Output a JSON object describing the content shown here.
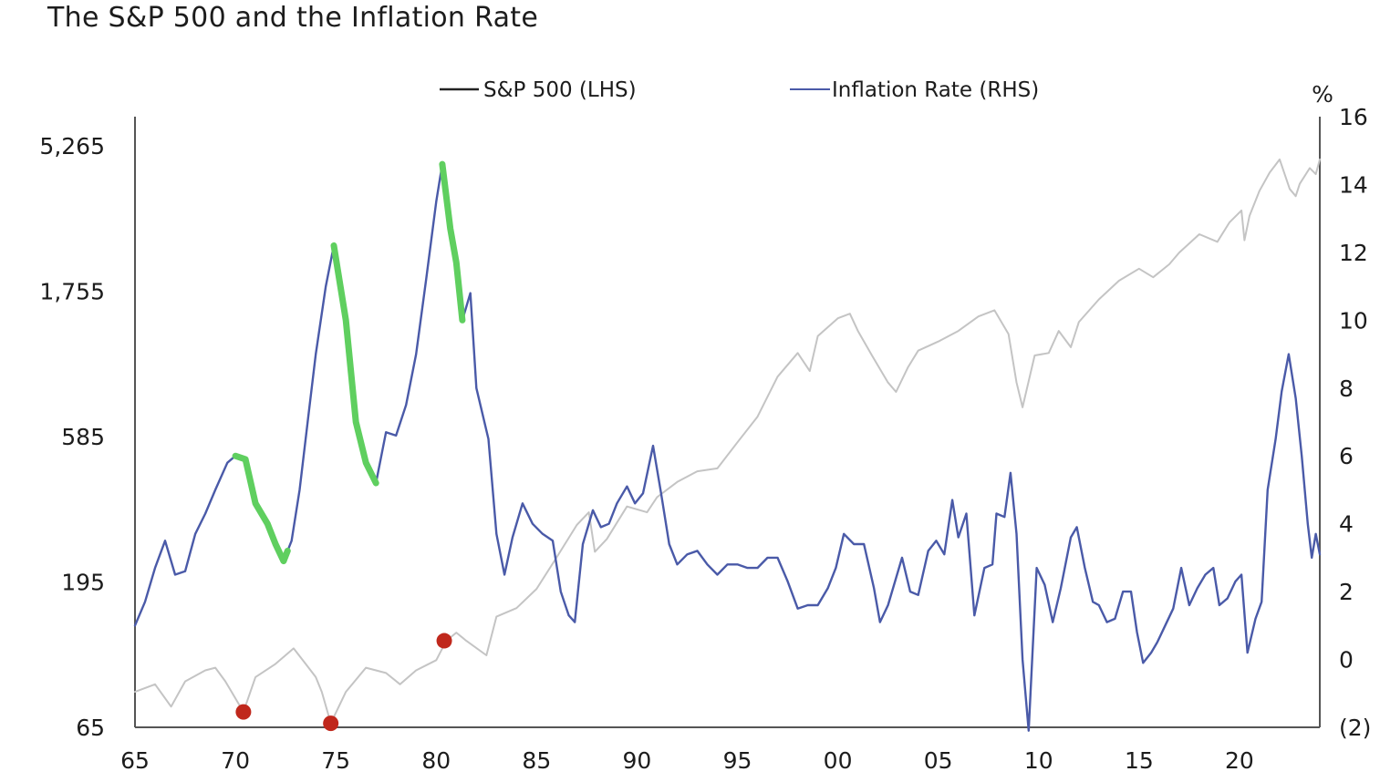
{
  "chart_data": {
    "type": "line",
    "title": "The S&P 500 and the Inflation Rate",
    "x_ticks": [
      "65",
      "70",
      "75",
      "80",
      "85",
      "90",
      "95",
      "00",
      "05",
      "10",
      "15",
      "20"
    ],
    "x_range": [
      1965,
      2024
    ],
    "left_axis": {
      "scale": "log",
      "ticks": [
        {
          "value": 65,
          "label": "65"
        },
        {
          "value": 195,
          "label": "195"
        },
        {
          "value": 585,
          "label": "585"
        },
        {
          "value": 1755,
          "label": "1,755"
        },
        {
          "value": 5265,
          "label": "5,265"
        }
      ],
      "range": [
        65,
        5265
      ]
    },
    "right_axis": {
      "unit": "%",
      "ticks": [
        {
          "value": -2,
          "label": "(2)"
        },
        {
          "value": 0,
          "label": "0"
        },
        {
          "value": 2,
          "label": "2"
        },
        {
          "value": 4,
          "label": "4"
        },
        {
          "value": 6,
          "label": "6"
        },
        {
          "value": 8,
          "label": "8"
        },
        {
          "value": 10,
          "label": "10"
        },
        {
          "value": 12,
          "label": "12"
        },
        {
          "value": 14,
          "label": "14"
        },
        {
          "value": 16,
          "label": "16"
        }
      ],
      "range": [
        -2,
        16
      ]
    },
    "legend": {
      "placement": "top-center",
      "items": [
        {
          "label": "S&P 500 (LHS)",
          "color": "#222222"
        },
        {
          "label": "Inflation Rate (RHS)",
          "color": "#4a5aa8"
        }
      ]
    },
    "series": [
      {
        "name": "S&P 500 (LHS)",
        "axis": "left",
        "color": "#c4c4c4",
        "points": [
          [
            1965.0,
            85
          ],
          [
            1966.0,
            90
          ],
          [
            1966.8,
            76
          ],
          [
            1967.5,
            92
          ],
          [
            1968.5,
            100
          ],
          [
            1969.0,
            102
          ],
          [
            1969.5,
            92
          ],
          [
            1970.4,
            73
          ],
          [
            1971.0,
            95
          ],
          [
            1972.0,
            105
          ],
          [
            1972.9,
            118
          ],
          [
            1973.5,
            105
          ],
          [
            1974.0,
            95
          ],
          [
            1974.3,
            85
          ],
          [
            1974.75,
            67
          ],
          [
            1975.5,
            85
          ],
          [
            1976.5,
            102
          ],
          [
            1977.5,
            98
          ],
          [
            1978.2,
            90
          ],
          [
            1979.0,
            100
          ],
          [
            1980.0,
            108
          ],
          [
            1980.5,
            125
          ],
          [
            1981.0,
            133
          ],
          [
            1981.5,
            125
          ],
          [
            1982.5,
            112
          ],
          [
            1983.0,
            150
          ],
          [
            1984.0,
            160
          ],
          [
            1985.0,
            185
          ],
          [
            1986.0,
            235
          ],
          [
            1987.0,
            300
          ],
          [
            1987.6,
            330
          ],
          [
            1987.9,
            245
          ],
          [
            1988.5,
            270
          ],
          [
            1989.5,
            345
          ],
          [
            1990.5,
            330
          ],
          [
            1991.0,
            370
          ],
          [
            1992.0,
            415
          ],
          [
            1993.0,
            450
          ],
          [
            1994.0,
            460
          ],
          [
            1995.0,
            560
          ],
          [
            1996.0,
            680
          ],
          [
            1997.0,
            920
          ],
          [
            1998.0,
            1100
          ],
          [
            1998.6,
            960
          ],
          [
            1999.0,
            1250
          ],
          [
            2000.0,
            1430
          ],
          [
            2000.6,
            1480
          ],
          [
            2001.0,
            1300
          ],
          [
            2001.7,
            1080
          ],
          [
            2002.5,
            880
          ],
          [
            2002.9,
            820
          ],
          [
            2003.5,
            990
          ],
          [
            2004.0,
            1120
          ],
          [
            2005.0,
            1200
          ],
          [
            2006.0,
            1300
          ],
          [
            2007.0,
            1450
          ],
          [
            2007.8,
            1520
          ],
          [
            2008.5,
            1270
          ],
          [
            2008.9,
            880
          ],
          [
            2009.2,
            730
          ],
          [
            2009.8,
            1080
          ],
          [
            2010.5,
            1100
          ],
          [
            2011.0,
            1300
          ],
          [
            2011.6,
            1150
          ],
          [
            2012.0,
            1390
          ],
          [
            2013.0,
            1650
          ],
          [
            2014.0,
            1900
          ],
          [
            2015.0,
            2080
          ],
          [
            2015.7,
            1950
          ],
          [
            2016.5,
            2150
          ],
          [
            2017.0,
            2350
          ],
          [
            2018.0,
            2700
          ],
          [
            2018.9,
            2550
          ],
          [
            2019.5,
            2950
          ],
          [
            2020.1,
            3230
          ],
          [
            2020.25,
            2580
          ],
          [
            2020.5,
            3100
          ],
          [
            2021.0,
            3750
          ],
          [
            2021.5,
            4300
          ],
          [
            2022.0,
            4750
          ],
          [
            2022.5,
            3800
          ],
          [
            2022.8,
            3600
          ],
          [
            2023.0,
            3950
          ],
          [
            2023.5,
            4450
          ],
          [
            2023.8,
            4250
          ],
          [
            2024.0,
            4750
          ]
        ]
      },
      {
        "name": "Inflation Rate (RHS)",
        "axis": "right",
        "color": "#4a5aa8",
        "points": [
          [
            1965.0,
            1.0
          ],
          [
            1965.5,
            1.7
          ],
          [
            1966.0,
            2.7
          ],
          [
            1966.5,
            3.5
          ],
          [
            1967.0,
            2.5
          ],
          [
            1967.5,
            2.6
          ],
          [
            1968.0,
            3.7
          ],
          [
            1968.5,
            4.3
          ],
          [
            1969.0,
            5.0
          ],
          [
            1969.6,
            5.8
          ],
          [
            1970.0,
            6.0
          ],
          [
            1970.5,
            5.9
          ],
          [
            1971.0,
            4.6
          ],
          [
            1971.6,
            4.0
          ],
          [
            1972.0,
            3.4
          ],
          [
            1972.4,
            2.9
          ],
          [
            1972.8,
            3.5
          ],
          [
            1973.2,
            5.0
          ],
          [
            1973.6,
            7.0
          ],
          [
            1974.0,
            9.0
          ],
          [
            1974.5,
            11.0
          ],
          [
            1974.9,
            12.2
          ],
          [
            1975.5,
            10.0
          ],
          [
            1976.0,
            7.0
          ],
          [
            1976.5,
            5.8
          ],
          [
            1977.0,
            5.2
          ],
          [
            1977.5,
            6.7
          ],
          [
            1978.0,
            6.6
          ],
          [
            1978.5,
            7.5
          ],
          [
            1979.0,
            9.0
          ],
          [
            1979.5,
            11.2
          ],
          [
            1980.0,
            13.5
          ],
          [
            1980.3,
            14.6
          ],
          [
            1980.7,
            12.7
          ],
          [
            1981.0,
            11.7
          ],
          [
            1981.3,
            10.0
          ],
          [
            1981.7,
            10.8
          ],
          [
            1982.0,
            8.0
          ],
          [
            1982.6,
            6.5
          ],
          [
            1983.0,
            3.7
          ],
          [
            1983.4,
            2.5
          ],
          [
            1983.8,
            3.6
          ],
          [
            1984.3,
            4.6
          ],
          [
            1984.8,
            4.0
          ],
          [
            1985.3,
            3.7
          ],
          [
            1985.8,
            3.5
          ],
          [
            1986.2,
            2.0
          ],
          [
            1986.6,
            1.3
          ],
          [
            1986.9,
            1.1
          ],
          [
            1987.3,
            3.4
          ],
          [
            1987.8,
            4.4
          ],
          [
            1988.2,
            3.9
          ],
          [
            1988.6,
            4.0
          ],
          [
            1989.0,
            4.6
          ],
          [
            1989.5,
            5.1
          ],
          [
            1989.9,
            4.6
          ],
          [
            1990.3,
            4.9
          ],
          [
            1990.8,
            6.3
          ],
          [
            1991.2,
            4.9
          ],
          [
            1991.6,
            3.4
          ],
          [
            1992.0,
            2.8
          ],
          [
            1992.5,
            3.1
          ],
          [
            1993.0,
            3.2
          ],
          [
            1993.5,
            2.8
          ],
          [
            1994.0,
            2.5
          ],
          [
            1994.5,
            2.8
          ],
          [
            1995.0,
            2.8
          ],
          [
            1995.5,
            2.7
          ],
          [
            1996.0,
            2.7
          ],
          [
            1996.5,
            3.0
          ],
          [
            1997.0,
            3.0
          ],
          [
            1997.5,
            2.3
          ],
          [
            1998.0,
            1.5
          ],
          [
            1998.5,
            1.6
          ],
          [
            1999.0,
            1.6
          ],
          [
            1999.5,
            2.1
          ],
          [
            1999.9,
            2.7
          ],
          [
            2000.3,
            3.7
          ],
          [
            2000.8,
            3.4
          ],
          [
            2001.3,
            3.4
          ],
          [
            2001.8,
            2.1
          ],
          [
            2002.1,
            1.1
          ],
          [
            2002.5,
            1.6
          ],
          [
            2002.9,
            2.4
          ],
          [
            2003.2,
            3.0
          ],
          [
            2003.6,
            2.0
          ],
          [
            2004.0,
            1.9
          ],
          [
            2004.5,
            3.2
          ],
          [
            2004.9,
            3.5
          ],
          [
            2005.3,
            3.1
          ],
          [
            2005.7,
            4.7
          ],
          [
            2006.0,
            3.6
          ],
          [
            2006.4,
            4.3
          ],
          [
            2006.8,
            1.3
          ],
          [
            2007.3,
            2.7
          ],
          [
            2007.7,
            2.8
          ],
          [
            2007.9,
            4.3
          ],
          [
            2008.3,
            4.2
          ],
          [
            2008.6,
            5.5
          ],
          [
            2008.9,
            3.7
          ],
          [
            2009.2,
            0.0
          ],
          [
            2009.5,
            -2.1
          ],
          [
            2009.9,
            2.7
          ],
          [
            2010.3,
            2.2
          ],
          [
            2010.7,
            1.1
          ],
          [
            2011.1,
            2.1
          ],
          [
            2011.6,
            3.6
          ],
          [
            2011.9,
            3.9
          ],
          [
            2012.3,
            2.7
          ],
          [
            2012.7,
            1.7
          ],
          [
            2013.0,
            1.6
          ],
          [
            2013.4,
            1.1
          ],
          [
            2013.8,
            1.2
          ],
          [
            2014.2,
            2.0
          ],
          [
            2014.6,
            2.0
          ],
          [
            2014.9,
            0.8
          ],
          [
            2015.2,
            -0.1
          ],
          [
            2015.6,
            0.2
          ],
          [
            2015.9,
            0.5
          ],
          [
            2016.3,
            1.0
          ],
          [
            2016.7,
            1.5
          ],
          [
            2017.1,
            2.7
          ],
          [
            2017.5,
            1.6
          ],
          [
            2017.9,
            2.1
          ],
          [
            2018.3,
            2.5
          ],
          [
            2018.7,
            2.7
          ],
          [
            2019.0,
            1.6
          ],
          [
            2019.4,
            1.8
          ],
          [
            2019.8,
            2.3
          ],
          [
            2020.1,
            2.5
          ],
          [
            2020.4,
            0.2
          ],
          [
            2020.8,
            1.2
          ],
          [
            2021.1,
            1.7
          ],
          [
            2021.4,
            5.0
          ],
          [
            2021.8,
            6.5
          ],
          [
            2022.1,
            7.9
          ],
          [
            2022.45,
            9.0
          ],
          [
            2022.8,
            7.7
          ],
          [
            2023.1,
            6.0
          ],
          [
            2023.4,
            4.0
          ],
          [
            2023.6,
            3.0
          ],
          [
            2023.8,
            3.7
          ],
          [
            2024.0,
            3.1
          ]
        ]
      }
    ],
    "highlights": [
      {
        "color": "#5fcf5f",
        "range": [
          1970.0,
          1972.6
        ]
      },
      {
        "color": "#5fcf5f",
        "range": [
          1974.9,
          1977.0
        ]
      },
      {
        "color": "#5fcf5f",
        "range": [
          1980.3,
          1981.3
        ]
      }
    ],
    "markers": [
      {
        "x": 1970.4,
        "y": 73,
        "color": "#c0281c"
      },
      {
        "x": 1974.75,
        "y": 67,
        "color": "#c0281c"
      },
      {
        "x": 1980.4,
        "y": 125,
        "color": "#c0281c"
      }
    ],
    "grid": false
  }
}
